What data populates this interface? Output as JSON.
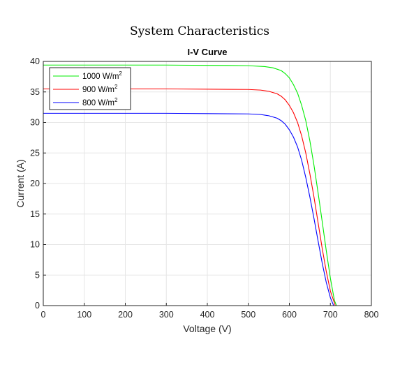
{
  "figure": {
    "title": "System Characteristics"
  },
  "chart_data": {
    "type": "line",
    "title": "I-V Curve",
    "xlabel": "Voltage (V)",
    "ylabel": "Current (A)",
    "xlim": [
      0,
      800
    ],
    "ylim": [
      0,
      40
    ],
    "xticks": [
      0,
      100,
      200,
      300,
      400,
      500,
      600,
      700,
      800
    ],
    "yticks": [
      0,
      5,
      10,
      15,
      20,
      25,
      30,
      35,
      40
    ],
    "grid": true,
    "legend_position": "top-left",
    "series": [
      {
        "name": "1000 W/m",
        "name_sup": "2",
        "color": "#00ee00",
        "x": [
          0,
          100,
          200,
          300,
          400,
          450,
          500,
          540,
          560,
          580,
          590,
          600,
          610,
          620,
          630,
          640,
          650,
          660,
          670,
          680,
          690,
          700,
          710,
          715
        ],
        "y": [
          39.4,
          39.4,
          39.4,
          39.4,
          39.35,
          39.33,
          39.3,
          39.15,
          38.95,
          38.5,
          38.0,
          37.3,
          36.2,
          34.8,
          32.8,
          30.3,
          27.0,
          23.0,
          18.5,
          13.8,
          9.0,
          4.5,
          0.8,
          0
        ]
      },
      {
        "name": "900 W/m",
        "name_sup": "2",
        "color": "#ff0000",
        "x": [
          0,
          100,
          200,
          300,
          400,
          450,
          500,
          530,
          550,
          570,
          580,
          590,
          600,
          610,
          620,
          630,
          640,
          650,
          660,
          670,
          680,
          690,
          700,
          712
        ],
        "y": [
          35.5,
          35.5,
          35.5,
          35.5,
          35.45,
          35.42,
          35.4,
          35.3,
          35.1,
          34.7,
          34.3,
          33.7,
          32.8,
          31.6,
          30.0,
          27.8,
          25.0,
          21.6,
          17.8,
          13.6,
          9.4,
          5.6,
          2.4,
          0
        ]
      },
      {
        "name": "800 W/m",
        "name_sup": "2",
        "color": "#0000ff",
        "x": [
          0,
          100,
          200,
          300,
          400,
          450,
          500,
          530,
          550,
          570,
          580,
          590,
          600,
          610,
          620,
          630,
          640,
          650,
          660,
          670,
          680,
          690,
          700,
          708
        ],
        "y": [
          31.5,
          31.5,
          31.5,
          31.5,
          31.45,
          31.42,
          31.4,
          31.3,
          31.1,
          30.7,
          30.3,
          29.7,
          28.8,
          27.6,
          26.0,
          23.8,
          21.0,
          17.8,
          14.3,
          10.6,
          7.0,
          3.8,
          1.3,
          0
        ]
      }
    ]
  }
}
